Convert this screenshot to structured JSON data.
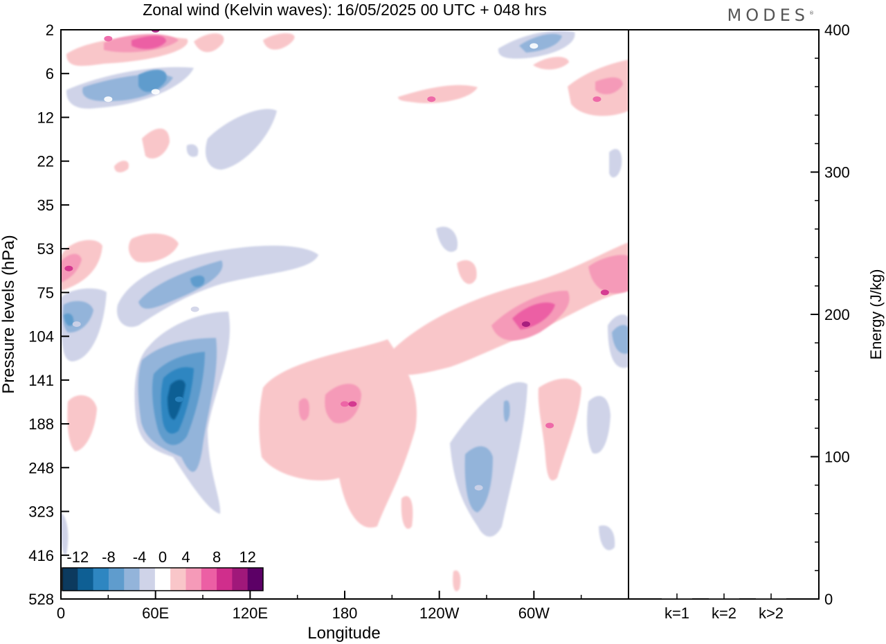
{
  "header": {
    "title": "Zonal wind (Kelvin waves):  16/05/2025  00 UTC  + 048 hrs",
    "brand": "MODES",
    "brand_mark": "®"
  },
  "chart_data": [
    {
      "type": "heatmap",
      "title": "Zonal wind (Kelvin waves):  16/05/2025  00 UTC  + 048 hrs",
      "xlabel": "Longitude",
      "ylabel": "Pressure levels (hPa)",
      "x_ticks": [
        "0",
        "60E",
        "120E",
        "180",
        "120W",
        "60W"
      ],
      "x_tick_values_deg": [
        0,
        60,
        120,
        180,
        240,
        300
      ],
      "xlim_deg": [
        0,
        360
      ],
      "y_ticks": [
        "2",
        "6",
        "12",
        "22",
        "35",
        "53",
        "75",
        "104",
        "141",
        "188",
        "248",
        "323",
        "416",
        "528"
      ],
      "y_scale": "log",
      "y_direction": "pressure decreasing upward",
      "colorbar": {
        "labels": [
          "-12",
          "-8",
          "-4",
          "0",
          "4",
          "8",
          "12"
        ],
        "levels": [
          -14,
          -12,
          -10,
          -8,
          -6,
          -4,
          -2,
          2,
          4,
          6,
          8,
          10,
          12,
          14
        ],
        "colors": [
          "#0c3a5e",
          "#0e5f94",
          "#2e86c1",
          "#5f9ccd",
          "#93b4da",
          "#cfd3e8",
          "#ffffff",
          "#f9c6c9",
          "#f59ab8",
          "#ec5fa4",
          "#d02e8c",
          "#a0187a",
          "#5c0066"
        ],
        "placement": "bottom-left inside plot"
      },
      "features": [
        {
          "lon": 60,
          "level": 2,
          "value": 8
        },
        {
          "lon": 30,
          "level": 2.5,
          "value": 4
        },
        {
          "lon": 60,
          "level": 8,
          "value": -4
        },
        {
          "lon": 30,
          "level": 9,
          "value": -4
        },
        {
          "lon": 300,
          "level": 3,
          "value": -4
        },
        {
          "lon": 340,
          "level": 9,
          "value": 4
        },
        {
          "lon": 235,
          "level": 9,
          "value": 4
        },
        {
          "lon": 5,
          "level": 62,
          "value": 6
        },
        {
          "lon": 85,
          "level": 85,
          "value": -6
        },
        {
          "lon": 10,
          "level": 95,
          "value": -6
        },
        {
          "lon": 75,
          "level": 160,
          "value": -12
        },
        {
          "lon": 180,
          "level": 165,
          "value": 4
        },
        {
          "lon": 185,
          "level": 165,
          "value": 6
        },
        {
          "lon": 295,
          "level": 95,
          "value": 8
        },
        {
          "lon": 345,
          "level": 75,
          "value": 6
        },
        {
          "lon": 265,
          "level": 280,
          "value": -6
        },
        {
          "lon": 310,
          "level": 190,
          "value": 4
        }
      ]
    },
    {
      "type": "bar",
      "categories": [
        "k=1",
        "k=2",
        "k>2"
      ],
      "values": [
        0.5,
        0.5,
        0.5
      ],
      "ylabel": "Energy (J/kg)",
      "ylim": [
        0,
        400
      ],
      "y_ticks": [
        "0",
        "100",
        "200",
        "300",
        "400"
      ],
      "y_axis_side": "right"
    }
  ]
}
